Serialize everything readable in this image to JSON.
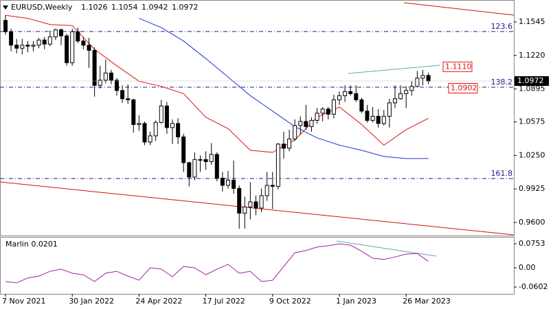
{
  "chart_data": {
    "type": "candlestick",
    "title": "EURUSD,Weekly",
    "categories": [
      "7 Nov 2021",
      null,
      null,
      null,
      null,
      null,
      null,
      null,
      null,
      null,
      null,
      null,
      "30 Jan 2022",
      null,
      null,
      null,
      null,
      null,
      null,
      null,
      null,
      null,
      null,
      null,
      "24 Apr 2022",
      null,
      null,
      null,
      null,
      null,
      null,
      null,
      null,
      null,
      null,
      null,
      "17 Jul 2022",
      null,
      null,
      null,
      null,
      null,
      null,
      null,
      null,
      null,
      null,
      null,
      "9 Oct 2022",
      null,
      null,
      null,
      null,
      null,
      null,
      null,
      null,
      null,
      null,
      null,
      "1 Jan 2023",
      null,
      null,
      null,
      null,
      null,
      null,
      null,
      null,
      null,
      null,
      null,
      "26 Mar 2023",
      null,
      null,
      null,
      null
    ],
    "candles": [
      [
        1.156,
        1.161,
        1.142,
        1.145
      ],
      [
        1.145,
        1.148,
        1.126,
        1.132
      ],
      [
        1.132,
        1.138,
        1.124,
        1.129
      ],
      [
        1.129,
        1.138,
        1.123,
        1.132
      ],
      [
        1.132,
        1.136,
        1.125,
        1.131
      ],
      [
        1.131,
        1.136,
        1.126,
        1.132
      ],
      [
        1.132,
        1.139,
        1.129,
        1.137
      ],
      [
        1.137,
        1.14,
        1.128,
        1.133
      ],
      [
        1.133,
        1.146,
        1.131,
        1.14
      ],
      [
        1.14,
        1.148,
        1.137,
        1.147
      ],
      [
        1.147,
        1.148,
        1.132,
        1.141
      ],
      [
        1.141,
        1.143,
        1.112,
        1.115
      ],
      [
        1.115,
        1.148,
        1.112,
        1.145
      ],
      [
        1.145,
        1.149,
        1.134,
        1.136
      ],
      [
        1.136,
        1.14,
        1.128,
        1.132
      ],
      [
        1.132,
        1.139,
        1.11,
        1.127
      ],
      [
        1.127,
        1.13,
        1.082,
        1.093
      ],
      [
        1.093,
        1.112,
        1.09,
        1.098
      ],
      [
        1.098,
        1.118,
        1.095,
        1.105
      ],
      [
        1.105,
        1.108,
        1.094,
        1.098
      ],
      [
        1.098,
        1.1,
        1.083,
        1.088
      ],
      [
        1.088,
        1.093,
        1.076,
        1.08
      ],
      [
        1.08,
        1.094,
        1.075,
        1.079
      ],
      [
        1.079,
        1.08,
        1.047,
        1.055
      ],
      [
        1.055,
        1.064,
        1.049,
        1.056
      ],
      [
        1.056,
        1.058,
        1.035,
        1.038
      ],
      [
        1.038,
        1.048,
        1.035,
        1.044
      ],
      [
        1.044,
        1.059,
        1.039,
        1.057
      ],
      [
        1.057,
        1.079,
        1.056,
        1.073
      ],
      [
        1.073,
        1.077,
        1.046,
        1.052
      ],
      [
        1.052,
        1.06,
        1.036,
        1.056
      ],
      [
        1.056,
        1.061,
        1.036,
        1.043
      ],
      [
        1.043,
        1.046,
        1.009,
        1.018
      ],
      [
        1.018,
        1.019,
        0.995,
        1.004
      ],
      [
        1.004,
        1.028,
        1.001,
        1.021
      ],
      [
        1.021,
        1.025,
        1.009,
        1.021
      ],
      [
        1.021,
        1.029,
        1.011,
        1.019
      ],
      [
        1.019,
        1.037,
        1.016,
        1.026
      ],
      [
        1.026,
        1.028,
        1.0,
        1.003
      ],
      [
        1.003,
        1.009,
        0.99,
        0.996
      ],
      [
        0.996,
        1.01,
        0.993,
        1.001
      ],
      [
        1.001,
        1.02,
        0.988,
        0.993
      ],
      [
        0.993,
        0.996,
        0.954,
        0.969
      ],
      [
        0.969,
        0.985,
        0.954,
        0.975
      ],
      [
        0.975,
        0.999,
        0.963,
        0.98
      ],
      [
        0.98,
        0.986,
        0.967,
        0.974
      ],
      [
        0.974,
        0.993,
        0.97,
        0.986
      ],
      [
        0.986,
        1.009,
        0.981,
        0.996
      ],
      [
        0.996,
        1.009,
        0.973,
        0.995
      ],
      [
        0.995,
        1.037,
        0.992,
        1.036
      ],
      [
        1.036,
        1.048,
        1.022,
        1.032
      ],
      [
        1.032,
        1.05,
        1.029,
        1.041
      ],
      [
        1.041,
        1.06,
        1.039,
        1.054
      ],
      [
        1.054,
        1.063,
        1.045,
        1.058
      ],
      [
        1.058,
        1.074,
        1.05,
        1.053
      ],
      [
        1.053,
        1.062,
        1.048,
        1.059
      ],
      [
        1.059,
        1.071,
        1.056,
        1.066
      ],
      [
        1.066,
        1.072,
        1.058,
        1.07
      ],
      [
        1.07,
        1.072,
        1.06,
        1.065
      ],
      [
        1.065,
        1.084,
        1.061,
        1.079
      ],
      [
        1.079,
        1.087,
        1.074,
        1.083
      ],
      [
        1.083,
        1.093,
        1.077,
        1.087
      ],
      [
        1.087,
        1.093,
        1.083,
        1.085
      ],
      [
        1.085,
        1.093,
        1.077,
        1.079
      ],
      [
        1.079,
        1.081,
        1.066,
        1.068
      ],
      [
        1.068,
        1.074,
        1.057,
        1.059
      ],
      [
        1.059,
        1.072,
        1.057,
        1.063
      ],
      [
        1.063,
        1.07,
        1.052,
        1.056
      ],
      [
        1.056,
        1.069,
        1.054,
        1.063
      ],
      [
        1.063,
        1.08,
        1.052,
        1.076
      ],
      [
        1.076,
        1.093,
        1.071,
        1.08
      ],
      [
        1.08,
        1.093,
        1.079,
        1.085
      ],
      [
        1.085,
        1.092,
        1.071,
        1.088
      ],
      [
        1.088,
        1.097,
        1.083,
        1.092
      ],
      [
        1.092,
        1.107,
        1.091,
        1.1
      ],
      [
        1.1,
        1.108,
        1.093,
        1.1026
      ],
      [
        1.1026,
        1.1054,
        1.0942,
        1.0972
      ]
    ],
    "overlays": [
      {
        "color": "#e01010",
        "x": [
          0,
          4,
          8,
          12,
          16,
          20,
          24,
          28,
          32,
          36,
          40,
          44,
          48,
          52,
          56,
          60,
          64,
          68,
          72,
          76
        ],
        "values": [
          1.161,
          1.158,
          1.152,
          1.151,
          1.128,
          1.112,
          1.097,
          1.092,
          1.085,
          1.062,
          1.051,
          1.03,
          1.028,
          1.04,
          1.062,
          1.072,
          1.055,
          1.035,
          1.05,
          1.061
        ]
      },
      {
        "color": "#1f35d0",
        "x": [
          24,
          28,
          32,
          36,
          40,
          44,
          48,
          52,
          56,
          60,
          64,
          68,
          72,
          76
        ],
        "values": [
          1.158,
          1.149,
          1.136,
          1.119,
          1.101,
          1.083,
          1.068,
          1.053,
          1.042,
          1.035,
          1.03,
          1.024,
          1.022,
          1.022
        ]
      }
    ],
    "ylim": [
      0.9473,
      1.1758
    ],
    "yticks": [
      1.1545,
      {
        "value": 1.122,
        "label": "1.1220"
      },
      1.0895,
      1.0575,
      {
        "value": 1.025,
        "label": "1.0250"
      },
      0.9925,
      {
        "value": 0.96,
        "label": "0.9600"
      }
    ],
    "levels": [
      {
        "value": 1.1452,
        "label": "123.6"
      },
      {
        "value": 1.0912,
        "label": "138.2"
      },
      {
        "value": 1.0026,
        "label": "161.8"
      }
    ],
    "price_tags": [
      {
        "value": 1.111,
        "label": "1.1110"
      },
      {
        "value": 1.0902,
        "label": "1.0902"
      }
    ],
    "indicator": {
      "title": "Marlin 0.0201",
      "color": "#a020a0",
      "x": [
        0,
        2,
        4,
        6,
        8,
        10,
        12,
        14,
        16,
        18,
        20,
        22,
        24,
        26,
        28,
        30,
        32,
        34,
        36,
        38,
        40,
        42,
        44,
        46,
        48,
        50,
        52,
        54,
        56,
        58,
        60,
        62,
        64,
        66,
        68,
        70,
        72,
        74,
        76
      ],
      "values": [
        -0.043,
        -0.047,
        -0.032,
        -0.026,
        -0.011,
        -0.004,
        -0.017,
        -0.022,
        -0.043,
        -0.017,
        -0.011,
        -0.026,
        -0.039,
        0.0,
        -0.004,
        -0.028,
        0.004,
        0.0,
        -0.022,
        -0.004,
        0.011,
        -0.017,
        -0.011,
        -0.043,
        -0.039,
        0.004,
        0.047,
        0.054,
        0.065,
        0.069,
        0.075,
        0.071,
        0.052,
        0.03,
        0.026,
        0.034,
        0.043,
        0.045,
        0.0201
      ],
      "ylim": [
        -0.0817,
        0.0946
      ],
      "yticks": [
        0.0753,
        {
          "value": 0,
          "label": "0.00"
        },
        -0.0602
      ]
    }
  }
}
